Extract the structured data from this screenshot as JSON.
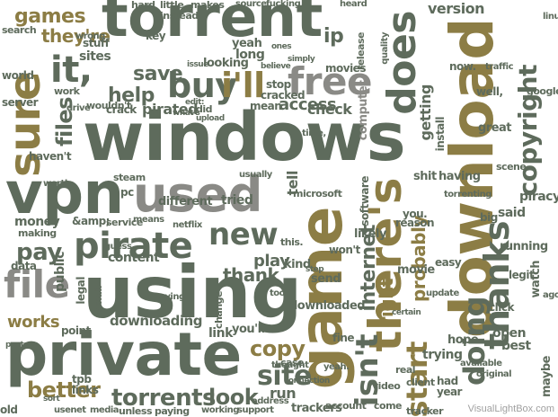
{
  "colors": {
    "dark": "#5e6b5c",
    "olive": "#8c7d45",
    "gray": "#8a8a86",
    "light": "#b3ae96",
    "background": "#ffffff"
  },
  "words": {
    "torrent": "torrent",
    "windows": "windows",
    "download": "download",
    "using": "using",
    "private": "private",
    "game": "game",
    "vpn": "vpn",
    "used": "used",
    "there_s": "there's",
    "pirate": "pirate",
    "free": "free",
    "file": "file",
    "sure": "sure",
    "it": "it,",
    "does": "does",
    "thanks": "thanks",
    "buy": "buy",
    "i_ll": "i'll",
    "copyright": "copyright",
    "games": "games",
    "they_re": "they're",
    "new": "new",
    "site": "site",
    "torrents": "torrents",
    "better": "better",
    "look": "look",
    "doing": "doing",
    "internet": "internet",
    "right": "right",
    "probably": "probably",
    "isn_t": "isn't",
    "start": "start",
    "pay": "pay",
    "works": "works",
    "copy": "copy",
    "help": "help",
    "save": "save",
    "files": "files",
    "version": "version",
    "access": "access",
    "check": "check",
    "pirated": "pirated",
    "different": "different",
    "tried": "tried",
    "thank": "thank",
    "play": "play",
    "downloading": "downloading",
    "downloaded": "downloaded",
    "computer": "computer",
    "getting": "getting",
    "install": "install",
    "piracy": "piracy",
    "trackers": "trackers",
    "run": "run",
    "link": "link",
    "public": "public",
    "money": "money",
    "data": "data",
    "legal": "legal",
    "content": "content",
    "movie": "movie",
    "send": "send",
    "kind": "kind",
    "won_t": "won't",
    "likely": "likely",
    "software": "software",
    "microsoft": "microsoft",
    "mean": "mean",
    "stop": "stop",
    "cracked": "cracked",
    "looking": "looking",
    "hard": "hard",
    "little": "little",
    "makes": "makes",
    "instead": "instead",
    "sites": "sites",
    "stuff": "stuff",
    "crack": "crack",
    "steam": "steam",
    "ip": "ip",
    "key": "key",
    "yeah": "yeah",
    "long": "long",
    "movies": "movies",
    "world": "world",
    "work": "work",
    "server": "server",
    "search": "search",
    "wrong": "wrong",
    "tell": "tell",
    "account": "account",
    "come": "come",
    "trying": "trying",
    "open": "open",
    "best": "best",
    "maybe": "maybe",
    "hope": "hope",
    "fine": "fine",
    "real": "real",
    "had": "had",
    "year": "year",
    "video": "video",
    "client": "client",
    "update": "update",
    "legit": "legit",
    "watch": "watch",
    "running": "running",
    "easy": "easy",
    "reason": "reason",
    "you": "you.",
    "big": "big",
    "said": "said",
    "great": "great",
    "google": "google",
    "well": "well,",
    "quality": "quality",
    "release": "release",
    "scene": "scene",
    "linux": "linux",
    "traffic": "traffic",
    "old": "old",
    "usenet": "usenet",
    "media": "media",
    "unless": "unless",
    "paying": "paying",
    "working": "working",
    "support": "support",
    "address": "address",
    "tracker": "tracker",
    "thought": "thought",
    "case": "case",
    "yeah2": "yeah.",
    "you_ll": "you'll",
    "change": "change",
    "point": "point",
    "email": "email",
    "tpb": "tpb",
    "links": "links",
    "service": "service",
    "netflix": "netflix",
    "guess": "guess",
    "making": "making",
    "usually": "usually",
    "this": "this.",
    "haven_t": "haven't",
    "wouldn_t": "wouldn't",
    "pc": "pc",
    "drive": "drive",
    "upload": "upload",
    "saying": "saying",
    "original": "original",
    "connection": "connection",
    "too": "too.",
    "available": "available",
    "certain": "certain",
    "having": "having",
    "shit": "shit",
    "torrenting": "torrenting",
    "ago": "ago",
    "worth": "worth",
    "amp": "&amp;",
    "means": "means",
    "source": "source",
    "heard": "heard",
    "believe": "believe",
    "simply": "simply",
    "issue": "issue",
    "did": "did",
    "edit": "edit:",
    "time": "time,",
    "click": "click",
    "posts": "posts",
    "ones": "ones",
    "now": "now.",
    "loader": "loader",
    "fucking": "fucking",
    "what_s": "what's",
    "step": "step",
    "sort": "sort"
  },
  "watermark": "VisualLightBox.com"
}
